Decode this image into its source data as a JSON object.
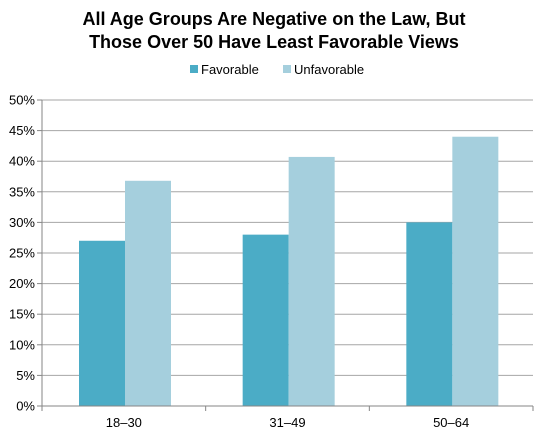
{
  "chart_data": {
    "type": "bar",
    "title_lines": [
      "All Age Groups Are Negative on the Law, But",
      "Those Over 50 Have Least Favorable Views"
    ],
    "categories": [
      "18–30",
      "31–49",
      "50–64"
    ],
    "series": [
      {
        "name": "Favorable",
        "values": [
          27,
          28,
          30
        ],
        "color": "#4BACC6"
      },
      {
        "name": "Unfavorable",
        "values": [
          36.8,
          40.7,
          44
        ],
        "color": "#A5CFDD"
      }
    ],
    "y_ticks": [
      "0%",
      "5%",
      "10%",
      "15%",
      "20%",
      "25%",
      "30%",
      "35%",
      "40%",
      "45%",
      "50%"
    ],
    "ylim": [
      0,
      50
    ],
    "grid": true,
    "legend_position": "top"
  }
}
